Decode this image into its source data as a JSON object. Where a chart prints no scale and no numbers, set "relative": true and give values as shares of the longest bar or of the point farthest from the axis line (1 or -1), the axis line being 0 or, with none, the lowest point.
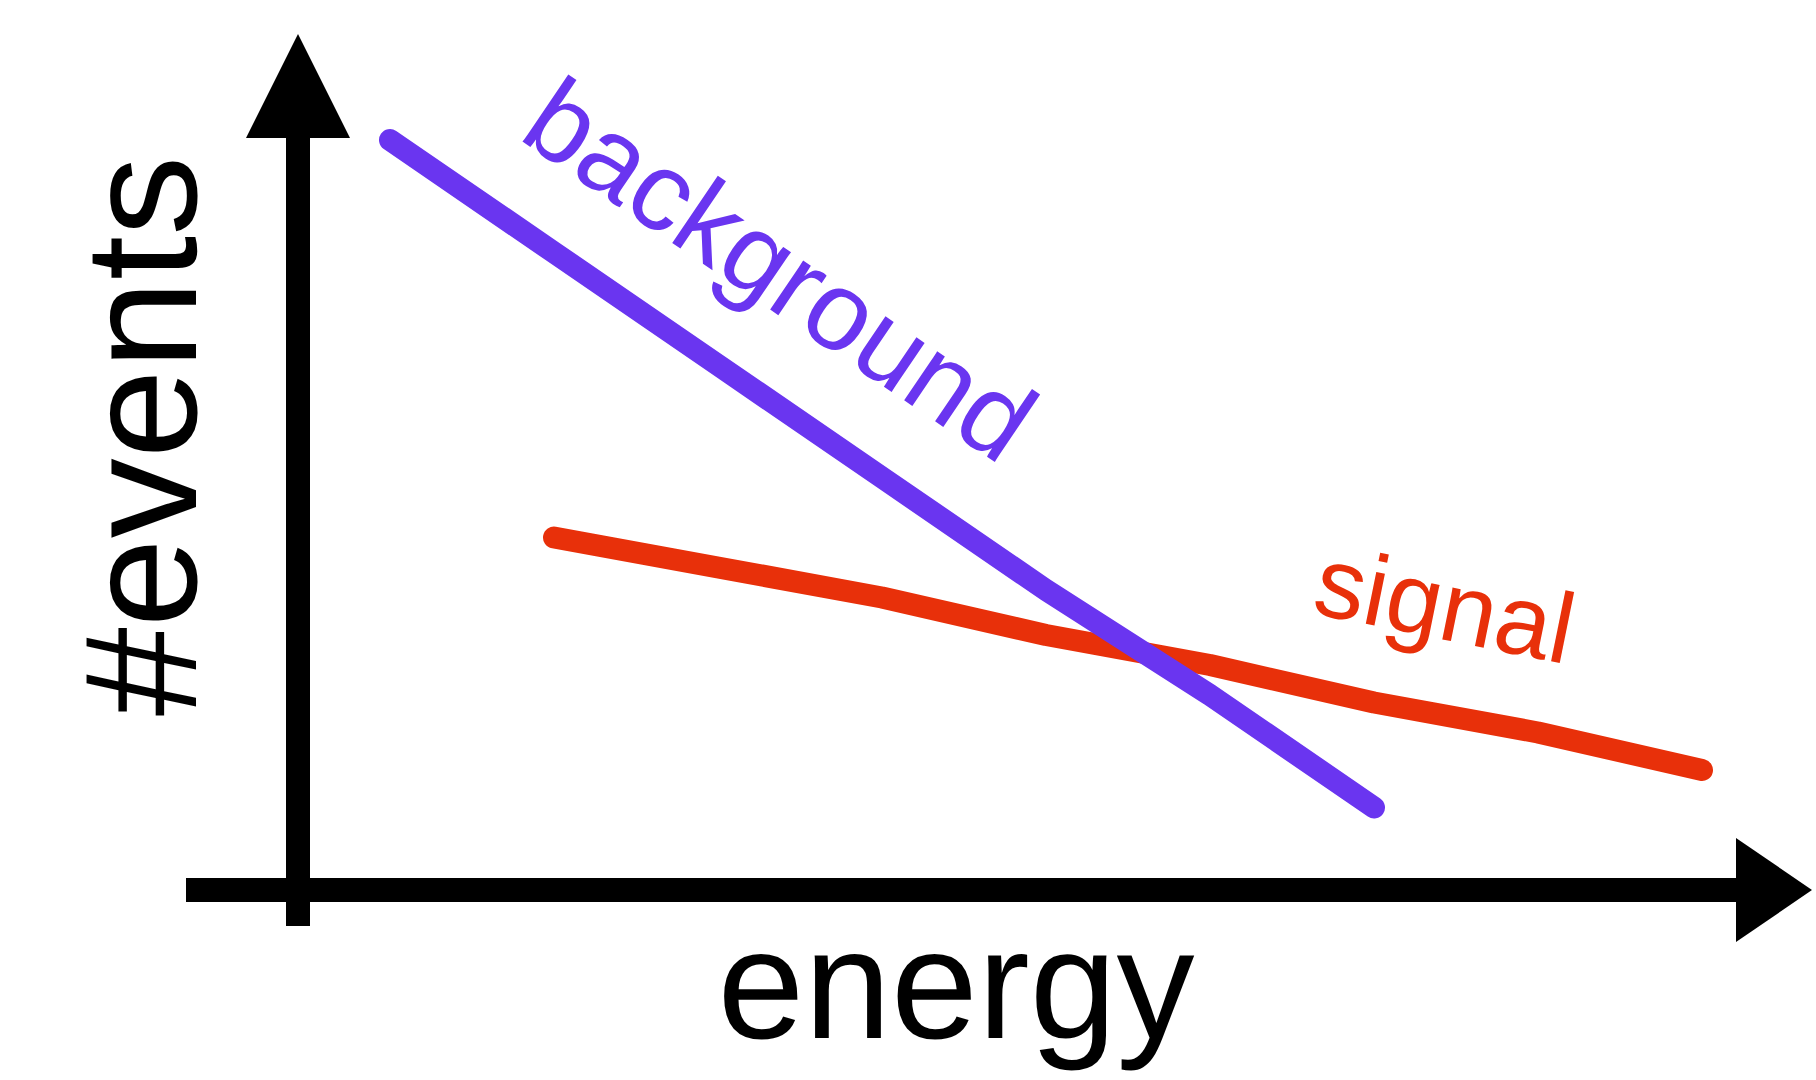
{
  "chart_data": {
    "type": "line",
    "xlabel": "energy",
    "ylabel": "#events",
    "relative": true,
    "marker": "none",
    "categories": [
      null,
      null,
      null,
      null,
      null,
      null,
      null,
      null,
      null
    ],
    "series": [
      {
        "name": "background",
        "color": "#6a35f0",
        "values": [
          1.0,
          0.85,
          0.7,
          0.55,
          0.4,
          0.26,
          0.11,
          null,
          null
        ]
      },
      {
        "name": "signal",
        "color": "#e8300a",
        "values": [
          null,
          0.47,
          0.43,
          0.39,
          0.34,
          0.3,
          0.25,
          0.21,
          0.16
        ]
      }
    ]
  }
}
